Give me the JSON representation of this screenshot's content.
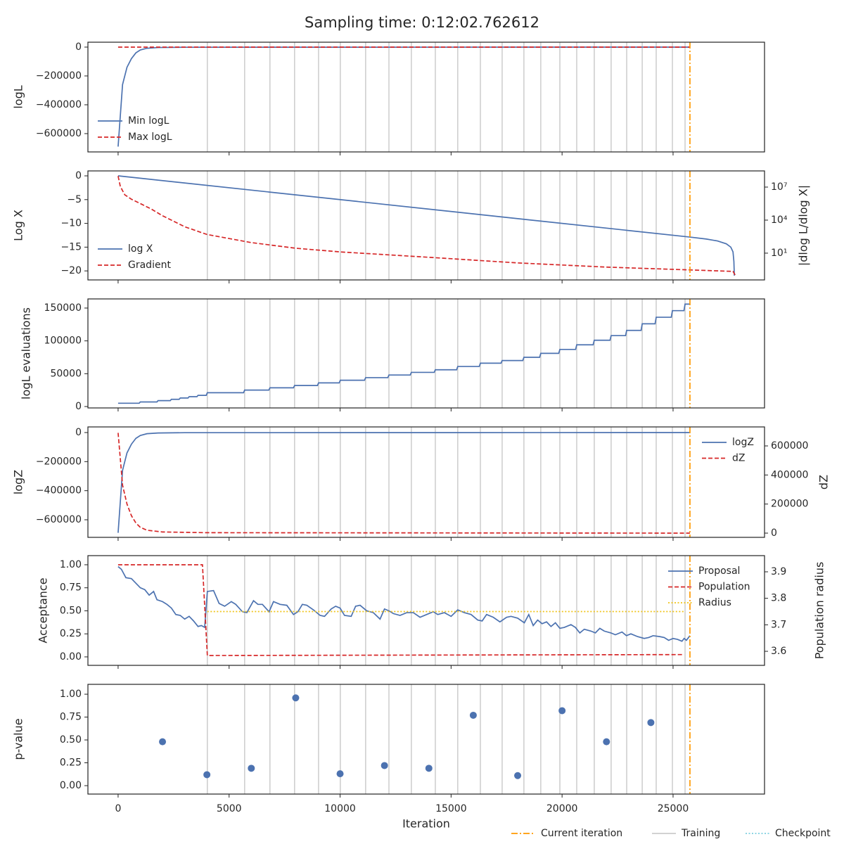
{
  "title": "Sampling time: 0:12:02.762612",
  "xlabel": "Iteration",
  "xlim": [
    -1360,
    29120
  ],
  "xticks": [
    0,
    5000,
    10000,
    15000,
    20000,
    25000
  ],
  "current_iteration": {
    "name": "Current iteration",
    "color": "#ff9900",
    "x": 25760
  },
  "training": {
    "name": "Training",
    "color": "#cccccc",
    "x": [
      4020,
      5700,
      6840,
      7950,
      9030,
      10010,
      11150,
      12200,
      13210,
      14290,
      15300,
      16320,
      17300,
      18280,
      19040,
      19900,
      20660,
      21450,
      22210,
      22910,
      23610,
      24240,
      24970,
      25540
    ]
  },
  "checkpoint": {
    "name": "Checkpoint",
    "color": "#7fcfe0"
  },
  "chart_data": [
    {
      "type": "line",
      "ylabel": "logL",
      "ylim": [
        -727000,
        34000
      ],
      "yticks": [
        0,
        {
          "value": -200000,
          "label": "−200000"
        },
        {
          "value": -400000,
          "label": "−400000"
        },
        {
          "value": -600000,
          "label": "−600000"
        }
      ],
      "legend": "lower left",
      "series": [
        {
          "name": "Min logL",
          "color": "#4c72b0",
          "style": "solid",
          "x": [
            0,
            200,
            400,
            600,
            800,
            1000,
            1300,
            1800,
            3000,
            25760
          ],
          "values": [
            -690000,
            -260000,
            -140000,
            -80000,
            -40000,
            -20000,
            -8000,
            -3000,
            -1000,
            0
          ]
        },
        {
          "name": "Max logL",
          "color": "#d62728",
          "style": "dashed",
          "x": [
            0,
            25760
          ],
          "values": [
            0,
            0
          ]
        }
      ]
    },
    {
      "type": "line",
      "ylabel": "Log X",
      "ylim": [
        -21.9,
        1.04
      ],
      "yticks": [
        0,
        {
          "value": -5,
          "label": "−5"
        },
        {
          "value": -10,
          "label": "−10"
        },
        {
          "value": -15,
          "label": "−15"
        },
        {
          "value": -20,
          "label": "−20"
        }
      ],
      "y2label": "|dlog L/dlog X|",
      "y2log": true,
      "y2lim": [
        0.037,
        295000000
      ],
      "y2ticks": [
        {
          "value": 10,
          "label": "10¹"
        },
        {
          "value": 10000,
          "label": "10⁴"
        },
        {
          "value": 10000000,
          "label": "10⁷"
        }
      ],
      "legend": "lower left",
      "series": [
        {
          "name": "log X",
          "color": "#4c72b0",
          "style": "solid",
          "x": [
            0,
            25760,
            26500,
            27000,
            27400,
            27600,
            27700,
            27740,
            27760
          ],
          "values": [
            0,
            -12.88,
            -13.3,
            -13.7,
            -14.3,
            -15.0,
            -16.0,
            -18.0,
            -21.0
          ]
        },
        {
          "name": "Gradient",
          "color": "#d62728",
          "style": "dashed",
          "axis": "y2",
          "x": [
            0,
            100,
            300,
            600,
            1000,
            1500,
            2000,
            3000,
            4000,
            6000,
            8000,
            10000,
            14000,
            18000,
            22000,
            25760,
            27700,
            27800
          ],
          "values": [
            100000000,
            11500000,
            2000000,
            790000,
            320000,
            100000,
            25000,
            2500,
            500,
            91,
            28,
            13,
            4.2,
            1.3,
            0.54,
            0.3,
            0.22,
            0.1
          ]
        }
      ]
    },
    {
      "type": "line",
      "ylabel": "logL evaluations",
      "ylim": [
        -2140,
        163900
      ],
      "yticks": [
        0,
        50000,
        100000,
        150000
      ],
      "series": [
        {
          "color": "#4c72b0",
          "style": "solid",
          "x": [
            0,
            950,
            1000,
            1750,
            1800,
            2350,
            2400,
            2750,
            2800,
            3150,
            3200,
            3550,
            3600,
            3970,
            4020,
            5650,
            5700,
            6790,
            6840,
            7900,
            7950,
            8980,
            9030,
            9960,
            10010,
            11100,
            11150,
            12150,
            12200,
            13160,
            13210,
            14240,
            14290,
            15250,
            15300,
            16270,
            16320,
            17250,
            17300,
            18230,
            18280,
            18990,
            19040,
            19850,
            19900,
            20610,
            20660,
            21400,
            21450,
            22160,
            22210,
            22860,
            22910,
            23560,
            23610,
            24190,
            24240,
            24920,
            24970,
            25490,
            25540,
            25760
          ],
          "values": [
            5000,
            5000,
            7000,
            7000,
            9000,
            9000,
            11000,
            11000,
            13000,
            13000,
            15000,
            15000,
            17000,
            17000,
            21000,
            21000,
            25000,
            25000,
            28500,
            28500,
            32000,
            32000,
            36000,
            36000,
            40000,
            40000,
            44000,
            44000,
            48000,
            48000,
            52000,
            52000,
            56000,
            56000,
            61000,
            61000,
            66000,
            66000,
            70000,
            70000,
            75000,
            75000,
            81000,
            81000,
            87000,
            87000,
            94000,
            94000,
            101000,
            101000,
            108000,
            108000,
            116000,
            116000,
            126000,
            126000,
            136000,
            136000,
            146000,
            146000,
            156000,
            156000
          ]
        }
      ]
    },
    {
      "type": "line",
      "ylabel": "logZ",
      "ylim": [
        -721000,
        38700
      ],
      "yticks": [
        0,
        {
          "value": -200000,
          "label": "−200000"
        },
        {
          "value": -400000,
          "label": "−400000"
        },
        {
          "value": -600000,
          "label": "−600000"
        }
      ],
      "y2label": "dZ",
      "y2lim": [
        -29000,
        730600
      ],
      "y2ticks": [
        0,
        200000,
        400000,
        600000
      ],
      "legend": "upper right",
      "series": [
        {
          "name": "logZ",
          "color": "#4c72b0",
          "style": "solid",
          "x": [
            0,
            200,
            400,
            600,
            800,
            1000,
            1300,
            1800,
            3000,
            25760
          ],
          "values": [
            -690000,
            -260000,
            -140000,
            -80000,
            -40000,
            -20000,
            -8000,
            -3000,
            -1000,
            0
          ]
        },
        {
          "name": "dZ",
          "color": "#d62728",
          "style": "dashed",
          "axis": "y2",
          "x": [
            0,
            200,
            400,
            600,
            800,
            1000,
            1300,
            2000,
            4000,
            25760
          ],
          "values": [
            690000,
            330000,
            200000,
            120000,
            70000,
            40000,
            20000,
            8000,
            3000,
            0
          ]
        }
      ]
    },
    {
      "type": "line",
      "ylabel": "Acceptance",
      "ylim": [
        -0.092,
        1.099
      ],
      "yticks": [
        {
          "value": 0,
          "label": "0.00"
        },
        {
          "value": 0.25,
          "label": "0.25"
        },
        {
          "value": 0.5,
          "label": "0.50"
        },
        {
          "value": 0.75,
          "label": "0.75"
        },
        {
          "value": 1,
          "label": "1.00"
        }
      ],
      "y2label": "Population radius",
      "y2lim": [
        3.547,
        3.961
      ],
      "y2ticks": [
        3.6,
        3.7,
        3.8,
        3.9
      ],
      "legend": "upper right",
      "series": [
        {
          "name": "Proposal",
          "color": "#4c72b0",
          "style": "solid",
          "x": [
            0,
            150,
            350,
            600,
            800,
            1000,
            1200,
            1400,
            1600,
            1750,
            2000,
            2200,
            2400,
            2600,
            2800,
            3000,
            3200,
            3400,
            3600,
            3750,
            3900,
            4020,
            4300,
            4550,
            4800,
            5100,
            5300,
            5600,
            5800,
            6100,
            6300,
            6500,
            6800,
            7000,
            7300,
            7600,
            7900,
            8100,
            8300,
            8500,
            8800,
            9100,
            9300,
            9600,
            9800,
            10000,
            10200,
            10500,
            10700,
            10900,
            11200,
            11500,
            11800,
            12000,
            12200,
            12400,
            12700,
            13000,
            13300,
            13600,
            13900,
            14200,
            14400,
            14700,
            15000,
            15300,
            15600,
            15900,
            16200,
            16400,
            16600,
            16900,
            17200,
            17500,
            17700,
            18000,
            18300,
            18500,
            18700,
            18900,
            19100,
            19300,
            19500,
            19700,
            19900,
            20100,
            20400,
            20600,
            20800,
            21000,
            21300,
            21500,
            21700,
            21900,
            22200,
            22400,
            22700,
            22900,
            23100,
            23400,
            23700,
            23900,
            24100,
            24400,
            24600,
            24800,
            25000,
            25200,
            25400,
            25500,
            25600,
            25760
          ],
          "values": [
            0.98,
            0.95,
            0.86,
            0.85,
            0.8,
            0.75,
            0.73,
            0.67,
            0.71,
            0.62,
            0.6,
            0.57,
            0.53,
            0.46,
            0.45,
            0.41,
            0.44,
            0.39,
            0.33,
            0.34,
            0.32,
            0.71,
            0.72,
            0.58,
            0.55,
            0.6,
            0.57,
            0.49,
            0.48,
            0.61,
            0.57,
            0.57,
            0.49,
            0.6,
            0.57,
            0.56,
            0.46,
            0.49,
            0.57,
            0.56,
            0.51,
            0.45,
            0.44,
            0.52,
            0.55,
            0.53,
            0.45,
            0.44,
            0.55,
            0.56,
            0.5,
            0.48,
            0.41,
            0.52,
            0.5,
            0.47,
            0.45,
            0.48,
            0.48,
            0.43,
            0.46,
            0.49,
            0.46,
            0.48,
            0.44,
            0.51,
            0.48,
            0.46,
            0.4,
            0.39,
            0.46,
            0.43,
            0.38,
            0.43,
            0.44,
            0.42,
            0.37,
            0.46,
            0.34,
            0.4,
            0.36,
            0.38,
            0.33,
            0.37,
            0.31,
            0.32,
            0.35,
            0.32,
            0.26,
            0.3,
            0.28,
            0.26,
            0.31,
            0.28,
            0.26,
            0.24,
            0.27,
            0.23,
            0.25,
            0.22,
            0.2,
            0.21,
            0.23,
            0.22,
            0.21,
            0.18,
            0.2,
            0.19,
            0.17,
            0.2,
            0.18,
            0.23
          ]
        },
        {
          "name": "Population",
          "color": "#d62728",
          "style": "dashed",
          "x": [
            0,
            3800,
            4020,
            25480
          ],
          "values": [
            1,
            1,
            0.015,
            0.025
          ]
        },
        {
          "name": "Radius",
          "color": "#f0c419",
          "style": "dotted",
          "axis": "y2",
          "x": [
            4020,
            25480
          ],
          "values": [
            3.75,
            3.75
          ]
        }
      ]
    },
    {
      "type": "scatter",
      "ylabel": "p-value",
      "ylim": [
        -0.092,
        1.108
      ],
      "yticks": [
        {
          "value": 0,
          "label": "0.00"
        },
        {
          "value": 0.25,
          "label": "0.25"
        },
        {
          "value": 0.5,
          "label": "0.50"
        },
        {
          "value": 0.75,
          "label": "0.75"
        },
        {
          "value": 1,
          "label": "1.00"
        }
      ],
      "series": [
        {
          "color": "#4c72b0",
          "x": [
            2000,
            4000,
            6000,
            8000,
            10000,
            12000,
            14000,
            16000,
            18000,
            20000,
            22000,
            24000
          ],
          "values": [
            0.48,
            0.12,
            0.19,
            0.96,
            0.13,
            0.22,
            0.19,
            0.77,
            0.11,
            0.82,
            0.48,
            0.69
          ]
        }
      ]
    }
  ]
}
